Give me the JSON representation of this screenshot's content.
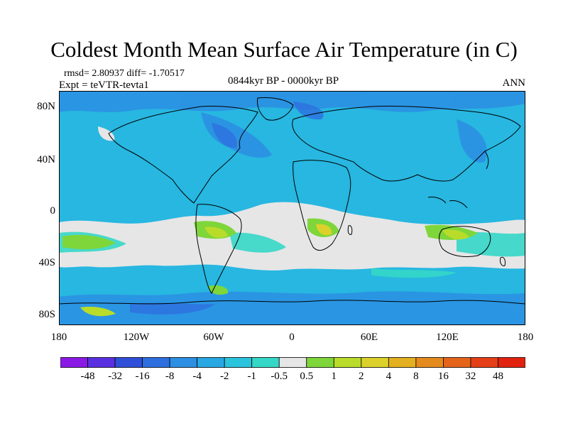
{
  "title": "Coldest Month Mean Surface Air Temperature (in C)",
  "info": {
    "rmsd": "rmsd= 2.80937 diff= -1.70517",
    "expt": "Expt = teVTR-tevta1",
    "period": "0844kyr BP - 0000kyr BP",
    "season": "ANN"
  },
  "axes": {
    "y_ticks": [
      "80N",
      "40N",
      "0",
      "40S",
      "80S"
    ],
    "x_ticks": [
      "180",
      "120W",
      "60W",
      "0",
      "60E",
      "120E",
      "180"
    ]
  },
  "colorbar": {
    "labels": [
      "-48",
      "-32",
      "-16",
      "-8",
      "-4",
      "-2",
      "-1",
      "-0.5",
      "0.5",
      "1",
      "2",
      "4",
      "8",
      "16",
      "32",
      "48"
    ],
    "colors": [
      "#8a19e6",
      "#5a2fe0",
      "#2f4fd8",
      "#2e6fe0",
      "#2c8fe3",
      "#27a8e3",
      "#2cc3dd",
      "#35d7c7",
      "#e6e6e6",
      "#7ed63a",
      "#b9dc2a",
      "#dcd12a",
      "#e4b021",
      "#e58a1c",
      "#e4641a",
      "#e43f17",
      "#e0220f"
    ]
  },
  "map_colors": {
    "ocean_base": "#27b7e1",
    "cool_ocean": "#2cc3dd",
    "polar_blue": "#2c8fe3",
    "deep_blue": "#2e6fe0",
    "near_zero": "#e6e6e6",
    "teal": "#35d7c7",
    "green": "#7ed63a",
    "lime": "#b9dc2a",
    "yellow": "#dcd12a",
    "coast": "#000000"
  }
}
